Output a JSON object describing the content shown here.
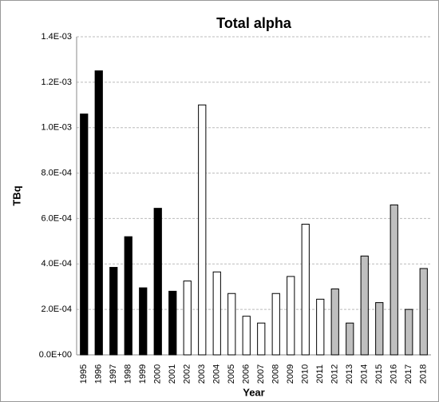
{
  "chart_data": {
    "type": "bar",
    "title": "Total alpha",
    "x_label": "Year",
    "y_label": "TBq",
    "categories": [
      "1995",
      "1996",
      "1997",
      "1998",
      "1999",
      "2000",
      "2001",
      "2002",
      "2003",
      "2004",
      "2005",
      "2006",
      "2007",
      "2008",
      "2009",
      "2010",
      "2011",
      "2012",
      "2013",
      "2014",
      "2015",
      "2016",
      "2017",
      "2018"
    ],
    "values": [
      0.00106,
      0.00125,
      0.000385,
      0.00052,
      0.000295,
      0.000645,
      0.00028,
      0.000325,
      0.0011,
      0.000365,
      0.00027,
      0.00017,
      0.00014,
      0.00027,
      0.000345,
      0.000575,
      0.000245,
      0.00029,
      0.00014,
      0.000435,
      0.00023,
      0.00066,
      0.0002,
      0.00038
    ],
    "colors": [
      "#000000",
      "#000000",
      "#000000",
      "#000000",
      "#000000",
      "#000000",
      "#000000",
      "#ffffff",
      "#ffffff",
      "#ffffff",
      "#ffffff",
      "#ffffff",
      "#ffffff",
      "#ffffff",
      "#ffffff",
      "#ffffff",
      "#ffffff",
      "#bfbfbf",
      "#bfbfbf",
      "#bfbfbf",
      "#bfbfbf",
      "#bfbfbf",
      "#bfbfbf",
      "#bfbfbf"
    ],
    "ylim": [
      0,
      0.0014
    ],
    "yticks": [
      {
        "value": 0,
        "label": "0.0E+00"
      },
      {
        "value": 0.0002,
        "label": "2.0E-04"
      },
      {
        "value": 0.0004,
        "label": "4.0E-04"
      },
      {
        "value": 0.0006,
        "label": "6.0E-04"
      },
      {
        "value": 0.0008,
        "label": "8.0E-04"
      },
      {
        "value": 0.001,
        "label": "1.0E-03"
      },
      {
        "value": 0.0012,
        "label": "1.2E-03"
      },
      {
        "value": 0.0014,
        "label": "1.4E-03"
      }
    ],
    "grid": true
  }
}
